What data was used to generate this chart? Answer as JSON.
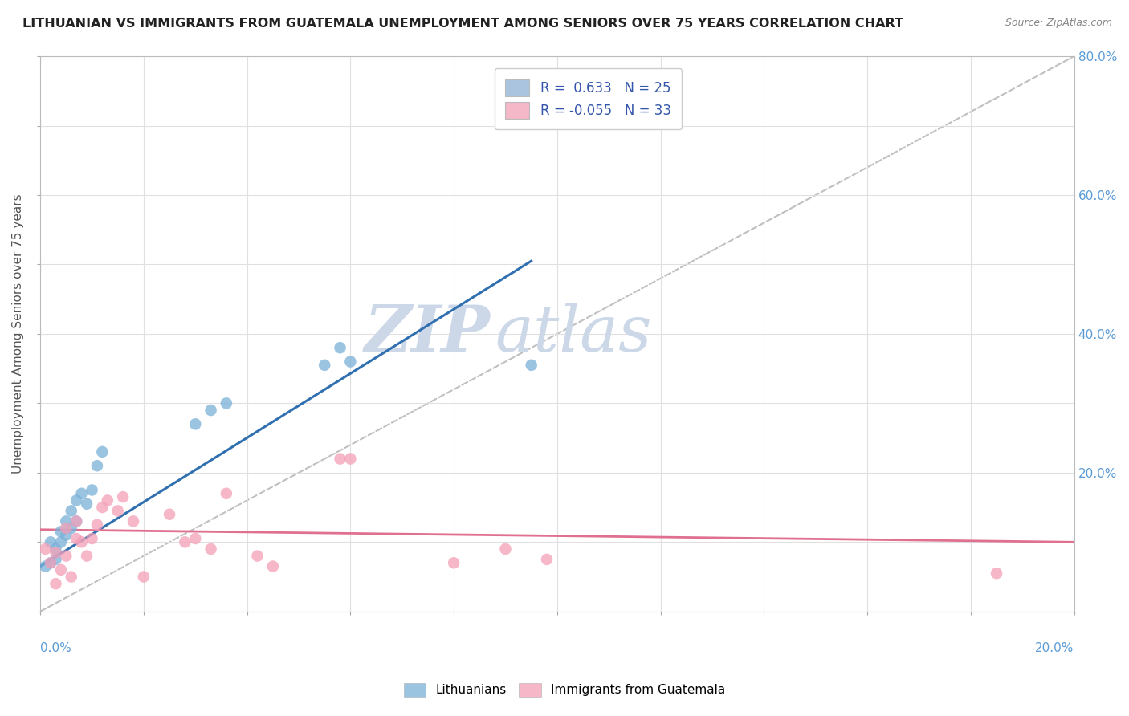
{
  "title": "LITHUANIAN VS IMMIGRANTS FROM GUATEMALA UNEMPLOYMENT AMONG SENIORS OVER 75 YEARS CORRELATION CHART",
  "source": "Source: ZipAtlas.com",
  "ylabel": "Unemployment Among Seniors over 75 years",
  "legend_entry1": {
    "color": "#aac4e0",
    "R": "0.633",
    "N": "25"
  },
  "legend_entry2": {
    "color": "#f4b8c8",
    "R": "-0.055",
    "N": "33"
  },
  "blue_scatter_x": [
    0.001,
    0.002,
    0.002,
    0.003,
    0.003,
    0.004,
    0.004,
    0.005,
    0.005,
    0.006,
    0.006,
    0.007,
    0.007,
    0.008,
    0.009,
    0.01,
    0.011,
    0.012,
    0.03,
    0.033,
    0.036,
    0.055,
    0.058,
    0.06,
    0.095
  ],
  "blue_scatter_y": [
    0.065,
    0.07,
    0.1,
    0.075,
    0.09,
    0.1,
    0.115,
    0.11,
    0.13,
    0.12,
    0.145,
    0.13,
    0.16,
    0.17,
    0.155,
    0.175,
    0.21,
    0.23,
    0.27,
    0.29,
    0.3,
    0.355,
    0.38,
    0.36,
    0.355
  ],
  "pink_scatter_x": [
    0.001,
    0.002,
    0.003,
    0.003,
    0.004,
    0.005,
    0.005,
    0.006,
    0.007,
    0.007,
    0.008,
    0.009,
    0.01,
    0.011,
    0.012,
    0.013,
    0.015,
    0.016,
    0.018,
    0.02,
    0.025,
    0.028,
    0.03,
    0.033,
    0.036,
    0.042,
    0.045,
    0.058,
    0.06,
    0.08,
    0.09,
    0.098,
    0.185
  ],
  "pink_scatter_y": [
    0.09,
    0.07,
    0.085,
    0.04,
    0.06,
    0.08,
    0.12,
    0.05,
    0.105,
    0.13,
    0.1,
    0.08,
    0.105,
    0.125,
    0.15,
    0.16,
    0.145,
    0.165,
    0.13,
    0.05,
    0.14,
    0.1,
    0.105,
    0.09,
    0.17,
    0.08,
    0.065,
    0.22,
    0.22,
    0.07,
    0.09,
    0.075,
    0.055
  ],
  "blue_line_x": [
    0.0,
    0.095
  ],
  "blue_line_y": [
    0.065,
    0.505
  ],
  "pink_line_x": [
    0.0,
    0.2
  ],
  "pink_line_y": [
    0.118,
    0.1
  ],
  "diag_line_x": [
    0.0,
    0.2
  ],
  "diag_line_y": [
    0.0,
    0.8
  ],
  "blue_color": "#7ab0d8",
  "pink_color": "#f4a0b8",
  "blue_line_color": "#3070b0",
  "pink_line_color": "#e07090",
  "diag_color": "#c0c0c0",
  "bg_color": "#ffffff",
  "watermark_zip": "ZIP",
  "watermark_atlas": "atlas",
  "watermark_color": "#ccd8e8",
  "xlim": [
    0.0,
    0.2
  ],
  "ylim": [
    0.0,
    0.8
  ],
  "grid_color": "#e0e0e0"
}
